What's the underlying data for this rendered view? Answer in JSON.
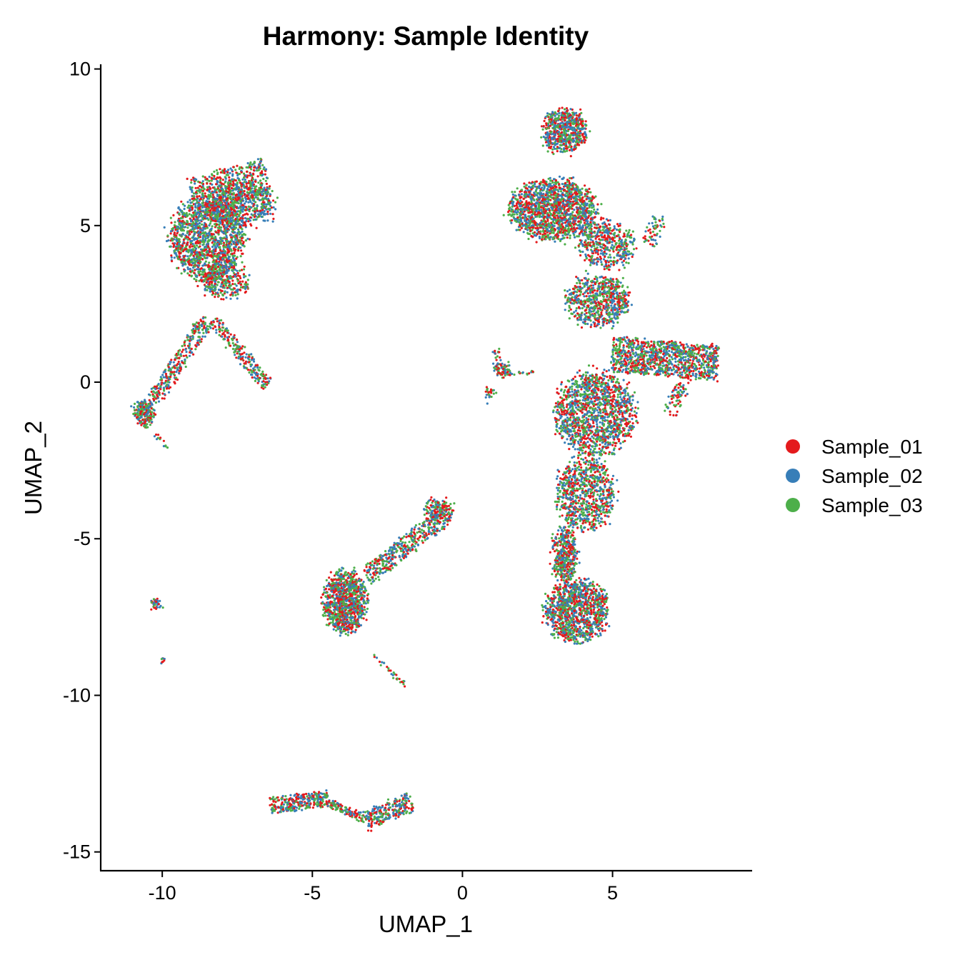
{
  "chart_data": {
    "type": "scatter",
    "title": "Harmony: Sample Identity",
    "xlabel": "UMAP_1",
    "ylabel": "UMAP_2",
    "xlim": [
      -12.05,
      9.65
    ],
    "ylim": [
      -15.6,
      10.15
    ],
    "xticks": [
      -10,
      -5,
      0,
      5
    ],
    "xtick_labels": [
      "-10",
      "-5",
      "0",
      "5"
    ],
    "yticks": [
      10,
      5,
      0,
      -5,
      -10,
      -15
    ],
    "ytick_labels": [
      "10",
      "5",
      "0",
      "-5",
      "-10",
      "-15"
    ],
    "grid": false,
    "legend_position": "right",
    "series": [
      {
        "name": "Sample_01",
        "color": "#E41A1C"
      },
      {
        "name": "Sample_02",
        "color": "#377EB8"
      },
      {
        "name": "Sample_03",
        "color": "#4DAF4A"
      }
    ],
    "cluster_regions": [
      {
        "shape": "blob",
        "cx": -8.5,
        "cy": 4.6,
        "rx": 1.4,
        "ry": 1.5,
        "weight": 1500
      },
      {
        "shape": "blob",
        "cx": -7.3,
        "cy": 5.7,
        "rx": 1.2,
        "ry": 0.8,
        "weight": 500
      },
      {
        "shape": "blob",
        "cx": -7.9,
        "cy": 3.2,
        "rx": 0.9,
        "ry": 0.6,
        "weight": 300
      },
      {
        "shape": "line",
        "x0": -6.5,
        "y0": 6.6,
        "x1": -9.0,
        "y1": 5.9,
        "width": 0.6,
        "weight": 500
      },
      {
        "shape": "line",
        "x0": -8.5,
        "y0": 2.0,
        "x1": -10.3,
        "y1": -0.6,
        "width": 0.25,
        "weight": 300
      },
      {
        "shape": "line",
        "x0": -8.3,
        "y0": 2.0,
        "x1": -6.5,
        "y1": -0.1,
        "width": 0.2,
        "weight": 230
      },
      {
        "shape": "blob",
        "cx": -10.6,
        "cy": -1.0,
        "rx": 0.35,
        "ry": 0.4,
        "weight": 220
      },
      {
        "shape": "line",
        "x0": -10.3,
        "y0": -1.6,
        "x1": -9.8,
        "y1": -2.1,
        "width": 0.05,
        "weight": 12
      },
      {
        "shape": "blob",
        "cx": -10.2,
        "cy": -7.1,
        "rx": 0.15,
        "ry": 0.15,
        "weight": 40
      },
      {
        "shape": "blob",
        "cx": -10.0,
        "cy": -8.9,
        "rx": 0.06,
        "ry": 0.1,
        "weight": 8
      },
      {
        "shape": "blob",
        "cx": -3.9,
        "cy": -7.0,
        "rx": 0.8,
        "ry": 1.1,
        "weight": 1000
      },
      {
        "shape": "line",
        "x0": -3.2,
        "y0": -6.2,
        "x1": -0.5,
        "y1": -4.2,
        "width": 0.3,
        "weight": 420
      },
      {
        "shape": "blob",
        "cx": -0.8,
        "cy": -4.1,
        "rx": 0.55,
        "ry": 0.4,
        "weight": 160
      },
      {
        "shape": "line",
        "x0": -3.0,
        "y0": -8.7,
        "x1": -1.9,
        "y1": -9.7,
        "width": 0.08,
        "weight": 30
      },
      {
        "shape": "line",
        "x0": -6.4,
        "y0": -13.5,
        "x1": -4.5,
        "y1": -13.3,
        "width": 0.25,
        "weight": 280
      },
      {
        "shape": "line",
        "x0": -4.5,
        "y0": -13.4,
        "x1": -3.2,
        "y1": -14.0,
        "width": 0.12,
        "weight": 120
      },
      {
        "shape": "line",
        "x0": -3.2,
        "y0": -14.0,
        "x1": -1.7,
        "y1": -13.4,
        "width": 0.3,
        "weight": 250
      },
      {
        "shape": "blob",
        "cx": 3.4,
        "cy": 8.0,
        "rx": 0.8,
        "ry": 0.8,
        "weight": 600
      },
      {
        "shape": "blob",
        "cx": 3.0,
        "cy": 5.5,
        "rx": 1.6,
        "ry": 1.1,
        "weight": 1500
      },
      {
        "shape": "blob",
        "cx": 4.8,
        "cy": 4.4,
        "rx": 1.0,
        "ry": 0.9,
        "weight": 450
      },
      {
        "shape": "blob",
        "cx": 4.5,
        "cy": 2.6,
        "rx": 1.2,
        "ry": 0.9,
        "weight": 700
      },
      {
        "shape": "line",
        "x0": 5.0,
        "y0": 0.9,
        "x1": 8.5,
        "y1": 0.6,
        "width": 0.55,
        "weight": 1100
      },
      {
        "shape": "line",
        "x0": 6.6,
        "y0": 5.3,
        "x1": 6.2,
        "y1": 4.4,
        "width": 0.25,
        "weight": 60
      },
      {
        "shape": "blob",
        "cx": 4.4,
        "cy": -1.0,
        "rx": 1.5,
        "ry": 1.5,
        "weight": 1400
      },
      {
        "shape": "line",
        "x0": 6.9,
        "y0": -1.0,
        "x1": 7.4,
        "y1": 0.0,
        "width": 0.25,
        "weight": 70
      },
      {
        "shape": "blob",
        "cx": 4.1,
        "cy": -3.6,
        "rx": 1.1,
        "ry": 1.3,
        "weight": 800
      },
      {
        "shape": "blob",
        "cx": 3.4,
        "cy": -5.5,
        "rx": 0.45,
        "ry": 1.0,
        "weight": 400
      },
      {
        "shape": "blob",
        "cx": 3.8,
        "cy": -7.3,
        "rx": 1.2,
        "ry": 1.1,
        "weight": 1100
      },
      {
        "shape": "blob",
        "cx": 1.3,
        "cy": 0.4,
        "rx": 0.25,
        "ry": 0.25,
        "weight": 70
      },
      {
        "shape": "blob",
        "cx": 1.2,
        "cy": 0.9,
        "rx": 0.1,
        "ry": 0.25,
        "weight": 14
      },
      {
        "shape": "blob",
        "cx": 0.9,
        "cy": -0.3,
        "rx": 0.15,
        "ry": 0.25,
        "weight": 25
      },
      {
        "shape": "line",
        "x0": 1.4,
        "y0": 0.3,
        "x1": 2.6,
        "y1": 0.3,
        "width": 0.06,
        "weight": 25
      }
    ]
  }
}
